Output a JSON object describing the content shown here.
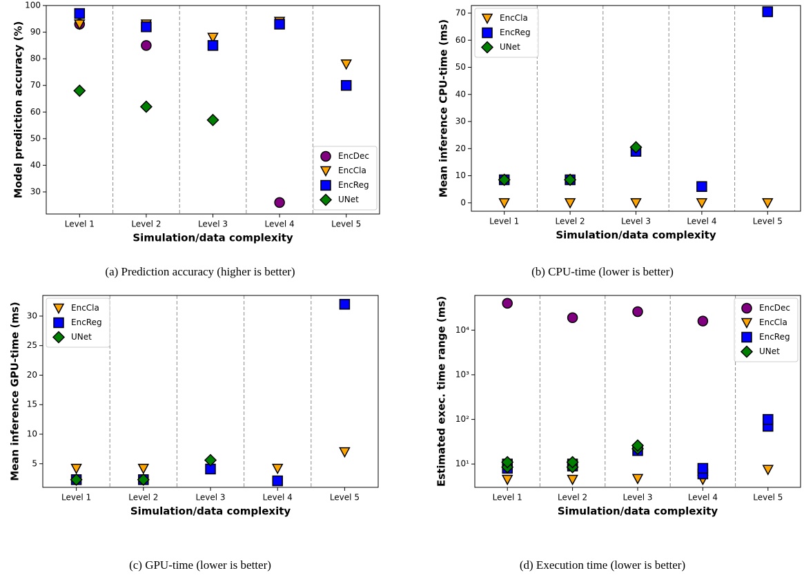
{
  "chart_data": [
    {
      "type": "scatter",
      "caption": "(a) Prediction accuracy (higher is better)",
      "xlabel": "Simulation/data complexity",
      "ylabel": "Model prediction accuracy (%)",
      "categories": [
        "Level 1",
        "Level 2",
        "Level 3",
        "Level 4",
        "Level 5"
      ],
      "ylim": [
        21.7,
        100
      ],
      "yticks": [
        30,
        40,
        50,
        60,
        70,
        80,
        90,
        100
      ],
      "legend": "lower right",
      "series": [
        {
          "name": "EncDec",
          "color": "#800080",
          "marker": "circle",
          "values": [
            93,
            85,
            null,
            26,
            null
          ]
        },
        {
          "name": "EncCla",
          "color": "#ffa500",
          "marker": "triangle_down",
          "values": [
            93,
            93,
            88,
            94,
            78
          ]
        },
        {
          "name": "EncReg",
          "color": "#0000ff",
          "marker": "square",
          "values": [
            97,
            92,
            85,
            93,
            70
          ]
        },
        {
          "name": "UNet",
          "color": "#008000",
          "marker": "diamond",
          "values": [
            68,
            62,
            57,
            null,
            null
          ]
        }
      ]
    },
    {
      "type": "scatter",
      "caption": "(b) CPU-time (lower is better)",
      "xlabel": "Simulation/data complexity",
      "ylabel": "Mean inference CPU-time (ms)",
      "categories": [
        "Level 1",
        "Level 2",
        "Level 3",
        "Level 4",
        "Level 5"
      ],
      "ylim": [
        -3.1,
        72.8
      ],
      "yticks": [
        0,
        10,
        20,
        30,
        40,
        50,
        60,
        70
      ],
      "legend": "upper left",
      "series": [
        {
          "name": "EncCla",
          "color": "#ffa500",
          "marker": "triangle_down",
          "values": [
            0,
            0,
            0,
            0,
            0
          ]
        },
        {
          "name": "EncReg",
          "color": "#0000ff",
          "marker": "square",
          "values": [
            8.5,
            8.5,
            19,
            6,
            70.5
          ]
        },
        {
          "name": "UNet",
          "color": "#008000",
          "marker": "diamond",
          "values": [
            8.5,
            8.5,
            20.5,
            null,
            null
          ]
        }
      ]
    },
    {
      "type": "scatter",
      "caption": "(c) GPU-time (lower is better)",
      "xlabel": "Simulation/data complexity",
      "ylabel": "Mean inference GPU-time (ms)",
      "categories": [
        "Level 1",
        "Level 2",
        "Level 3",
        "Level 4",
        "Level 5"
      ],
      "ylim": [
        1.0,
        33.5
      ],
      "yticks": [
        5,
        10,
        15,
        20,
        25,
        30
      ],
      "legend": "upper left",
      "series": [
        {
          "name": "EncCla",
          "color": "#ffa500",
          "marker": "triangle_down",
          "values": [
            4.2,
            4.2,
            null,
            4.2,
            7
          ]
        },
        {
          "name": "EncReg",
          "color": "#0000ff",
          "marker": "square",
          "values": [
            2.3,
            2.3,
            4.1,
            2.1,
            32
          ]
        },
        {
          "name": "UNet",
          "color": "#008000",
          "marker": "diamond",
          "values": [
            2.3,
            2.3,
            5.6,
            null,
            null
          ]
        }
      ]
    },
    {
      "type": "scatter",
      "caption": "(d) Execution time (lower is better)",
      "xlabel": "Simulation/data complexity",
      "ylabel": "Estimated exec. time range (ms)",
      "categories": [
        "Level 1",
        "Level 2",
        "Level 3",
        "Level 4",
        "Level 5"
      ],
      "log": true,
      "ylim": [
        3,
        60000
      ],
      "yticks": [
        {
          "value": 10,
          "label": "10¹"
        },
        {
          "value": 100,
          "label": "10²"
        },
        {
          "value": 1000,
          "label": "10³"
        },
        {
          "value": 10000,
          "label": "10⁴"
        }
      ],
      "legend": "upper right",
      "series": [
        {
          "name": "EncDec",
          "color": "#800080",
          "marker": "circle",
          "values": [
            40000,
            19000,
            26000,
            16000,
            null
          ]
        },
        {
          "name": "EncCla",
          "color": "#ffa500",
          "marker": "triangle_down",
          "values": [
            4.5,
            4.5,
            4.7,
            4.5,
            7.5
          ]
        },
        {
          "name": "EncReg",
          "color": "#0000ff",
          "marker": "square",
          "values": [
            [
              8,
              10
            ],
            [
              9,
              10
            ],
            20,
            [
              6,
              8
            ],
            [
              70,
              100
            ]
          ]
        },
        {
          "name": "UNet",
          "color": "#008000",
          "marker": "diamond",
          "values": [
            [
              8.5,
              11
            ],
            [
              8.5,
              11
            ],
            [
              22,
              26
            ],
            null,
            null
          ]
        }
      ]
    }
  ]
}
